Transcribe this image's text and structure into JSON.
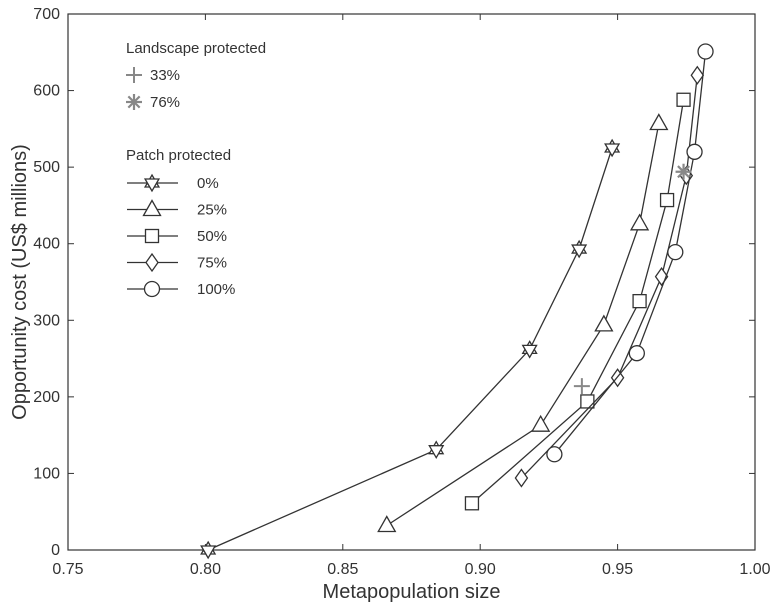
{
  "chart_data": {
    "type": "line",
    "xlabel": "Metapopulation size",
    "ylabel": "Opportunity cost (US$ millions)",
    "xlim": [
      0.75,
      1.0
    ],
    "ylim": [
      0,
      700
    ],
    "xticks": [
      0.75,
      0.8,
      0.85,
      0.9,
      0.95,
      1.0
    ],
    "xtick_labels": [
      "0.75",
      "0.80",
      "0.85",
      "0.90",
      "0.95",
      "1.00"
    ],
    "yticks": [
      0,
      100,
      200,
      300,
      400,
      500,
      600,
      700
    ],
    "ytick_labels": [
      "0",
      "100",
      "200",
      "300",
      "400",
      "500",
      "600",
      "700"
    ],
    "grid": false,
    "legend": {
      "placement": "top-left",
      "group1_title": "Landscape protected",
      "group2_title": "Patch protected"
    },
    "landscape_series": [
      {
        "name": "33%",
        "marker": "plus",
        "color": "#888888",
        "points": [
          [
            0.937,
            214
          ]
        ]
      },
      {
        "name": "76%",
        "marker": "asterisk",
        "color": "#888888",
        "points": [
          [
            0.974,
            494
          ]
        ]
      }
    ],
    "series": [
      {
        "name": "0%",
        "marker": "hexagram",
        "color": "#333333",
        "x": [
          0.801,
          0.884,
          0.918,
          0.936,
          0.948
        ],
        "y": [
          0,
          131,
          262,
          393,
          525
        ]
      },
      {
        "name": "25%",
        "marker": "triangle",
        "color": "#333333",
        "x": [
          0.866,
          0.922,
          0.945,
          0.958,
          0.965
        ],
        "y": [
          32,
          163,
          294,
          426,
          557
        ]
      },
      {
        "name": "50%",
        "marker": "square",
        "color": "#333333",
        "x": [
          0.897,
          0.939,
          0.958,
          0.968,
          0.974
        ],
        "y": [
          61,
          194,
          325,
          457,
          588
        ]
      },
      {
        "name": "75%",
        "marker": "diamond",
        "color": "#333333",
        "x": [
          0.915,
          0.95,
          0.966,
          0.975,
          0.979
        ],
        "y": [
          94,
          225,
          357,
          489,
          620
        ]
      },
      {
        "name": "100%",
        "marker": "circle",
        "color": "#333333",
        "x": [
          0.927,
          0.957,
          0.971,
          0.978,
          0.982
        ],
        "y": [
          125,
          257,
          389,
          520,
          651
        ]
      }
    ]
  }
}
